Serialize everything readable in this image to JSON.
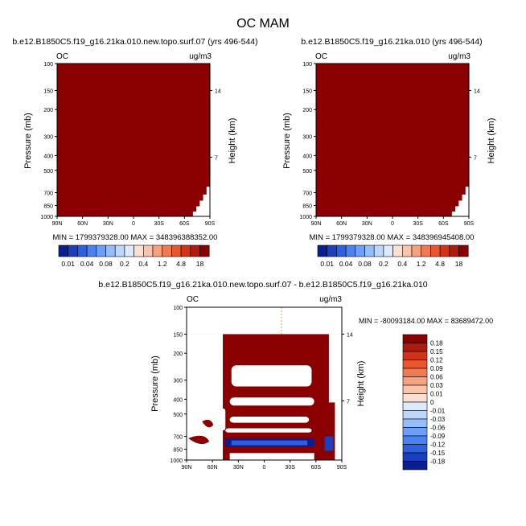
{
  "title": "OC MAM",
  "palette": {
    "neg": [
      "#0a1f8f",
      "#1a3fbf",
      "#2d5fe0",
      "#4a82f2",
      "#6e9ff7",
      "#95bdfa",
      "#bcd6fc",
      "#dde9fd"
    ],
    "pos": [
      "#fbe0d2",
      "#f9c4aa",
      "#f6a27e",
      "#f07b52",
      "#e8552f",
      "#d23318",
      "#b01a0c",
      "#8b0000"
    ]
  },
  "chart_data": [
    {
      "type": "heatmap",
      "title": "b.e12.B1850C5.f19_g16.21ka.010.new.topo.surf.07 (yrs 496-544)",
      "left_label": "OC",
      "units": "ug/m3",
      "ylabel": "Pressure (mb)",
      "ylabel_right": "Height (km)",
      "x_ticks": [
        "90N",
        "60N",
        "30N",
        "0",
        "30S",
        "60S",
        "90S"
      ],
      "y_ticks": [
        "100",
        "150",
        "200",
        "300",
        "400",
        "500",
        "700",
        "850",
        "1000"
      ],
      "y_ticks_right": [
        "14",
        "7"
      ],
      "ylim": [
        1000,
        100
      ],
      "min_max_text": "MIN = 1799379328.00   MAX = 348396388352.00",
      "colorbar_labels": [
        "0.01",
        "0.04",
        "0.08",
        "0.2",
        "0.4",
        "1.2",
        "4.8",
        "18"
      ]
    },
    {
      "type": "heatmap",
      "title": "b.e12.B1850C5.f19_g16.21ka.010 (yrs 496-544)",
      "left_label": "OC",
      "units": "ug/m3",
      "ylabel": "Pressure (mb)",
      "ylabel_right": "Height (km)",
      "x_ticks": [
        "90N",
        "60N",
        "30N",
        "0",
        "30S",
        "60S",
        "90S"
      ],
      "y_ticks": [
        "100",
        "150",
        "200",
        "300",
        "400",
        "500",
        "700",
        "850",
        "1000"
      ],
      "y_ticks_right": [
        "14",
        "7"
      ],
      "ylim": [
        1000,
        100
      ],
      "min_max_text": "MIN = 1799379328.00   MAX = 348396945408.00",
      "colorbar_labels": [
        "0.01",
        "0.04",
        "0.08",
        "0.2",
        "0.4",
        "1.2",
        "4.8",
        "18"
      ]
    },
    {
      "type": "heatmap",
      "title": "b.e12.B1850C5.f19_g16.21ka.010.new.topo.surf.07 - b.e12.B1850C5.f19_g16.21ka.010",
      "left_label": "OC",
      "units": "ug/m3",
      "ylabel": "Pressure (mb)",
      "ylabel_right": "Height (km)",
      "x_ticks": [
        "90N",
        "60N",
        "30N",
        "0",
        "30S",
        "60S",
        "90S"
      ],
      "y_ticks": [
        "100",
        "150",
        "200",
        "300",
        "400",
        "500",
        "700",
        "850",
        "1000"
      ],
      "y_ticks_right": [
        "14",
        "7"
      ],
      "ylim": [
        1000,
        100
      ],
      "min_max_text": "MIN = -80093184.00   MAX = 83689472.00",
      "colorbar_labels": [
        "0.18",
        "0.15",
        "0.12",
        "0.09",
        "0.06",
        "0.03",
        "0.01",
        "0",
        "-0.01",
        "-0.03",
        "-0.06",
        "-0.09",
        "-0.12",
        "-0.15",
        "-0.18"
      ]
    }
  ]
}
